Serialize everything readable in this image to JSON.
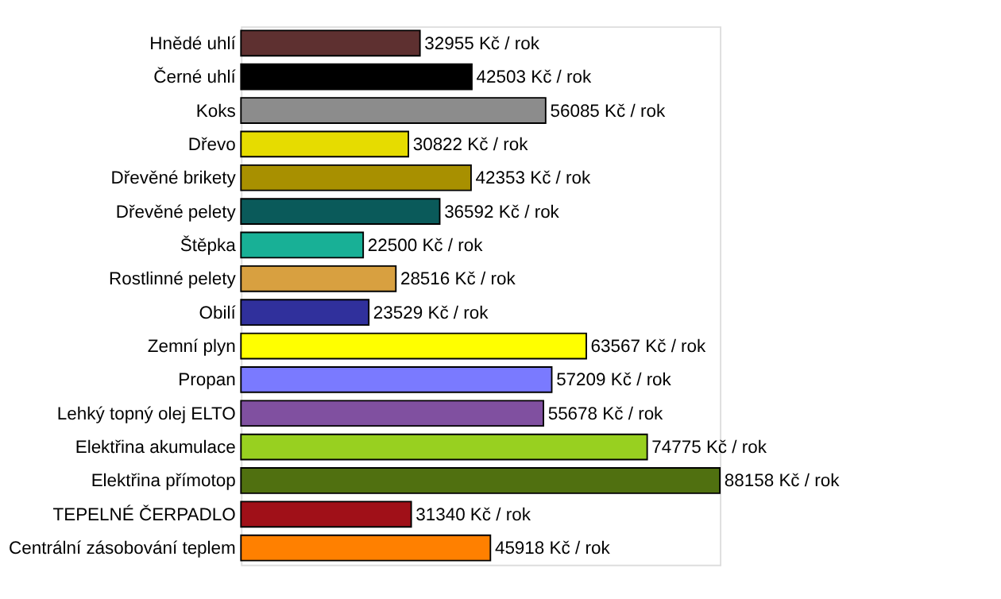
{
  "chart_data": {
    "type": "bar",
    "orientation": "horizontal",
    "categories": [
      "Hnědé uhlí",
      "Černé uhlí",
      "Koks",
      "Dřevo",
      "Dřevěné brikety",
      "Dřevěné pelety",
      "Štěpka",
      "Rostlinné pelety",
      "Obilí",
      "Zemní plyn",
      "Propan",
      "Lehký topný olej ELTO",
      "Elektřina akumulace",
      "Elektřina přímotop",
      "TEPELNÉ ČERPADLO",
      "Centrální zásobování teplem"
    ],
    "values": [
      32955,
      42503,
      56085,
      30822,
      42353,
      36592,
      22500,
      28516,
      23529,
      63567,
      57209,
      55678,
      74775,
      88158,
      31340,
      45918
    ],
    "colors": [
      "#5e3030",
      "#000000",
      "#8c8c8c",
      "#e6dc00",
      "#a89000",
      "#0a5a5a",
      "#18b096",
      "#d8a040",
      "#30309c",
      "#ffff00",
      "#7a7aff",
      "#8050a0",
      "#98d020",
      "#507010",
      "#a01018",
      "#ff8000"
    ],
    "value_labels": [
      "32955 Kč / rok",
      "42503 Kč / rok",
      "56085 Kč / rok",
      "30822 Kč / rok",
      "42353 Kč / rok",
      "36592 Kč / rok",
      "22500 Kč / rok",
      "28516 Kč / rok",
      "23529 Kč / rok",
      "63567 Kč / rok",
      "57209 Kč / rok",
      "55678 Kč / rok",
      "74775 Kč / rok",
      "88158 Kč / rok",
      "31340 Kč / rok",
      "45918 Kč / rok"
    ]
  }
}
